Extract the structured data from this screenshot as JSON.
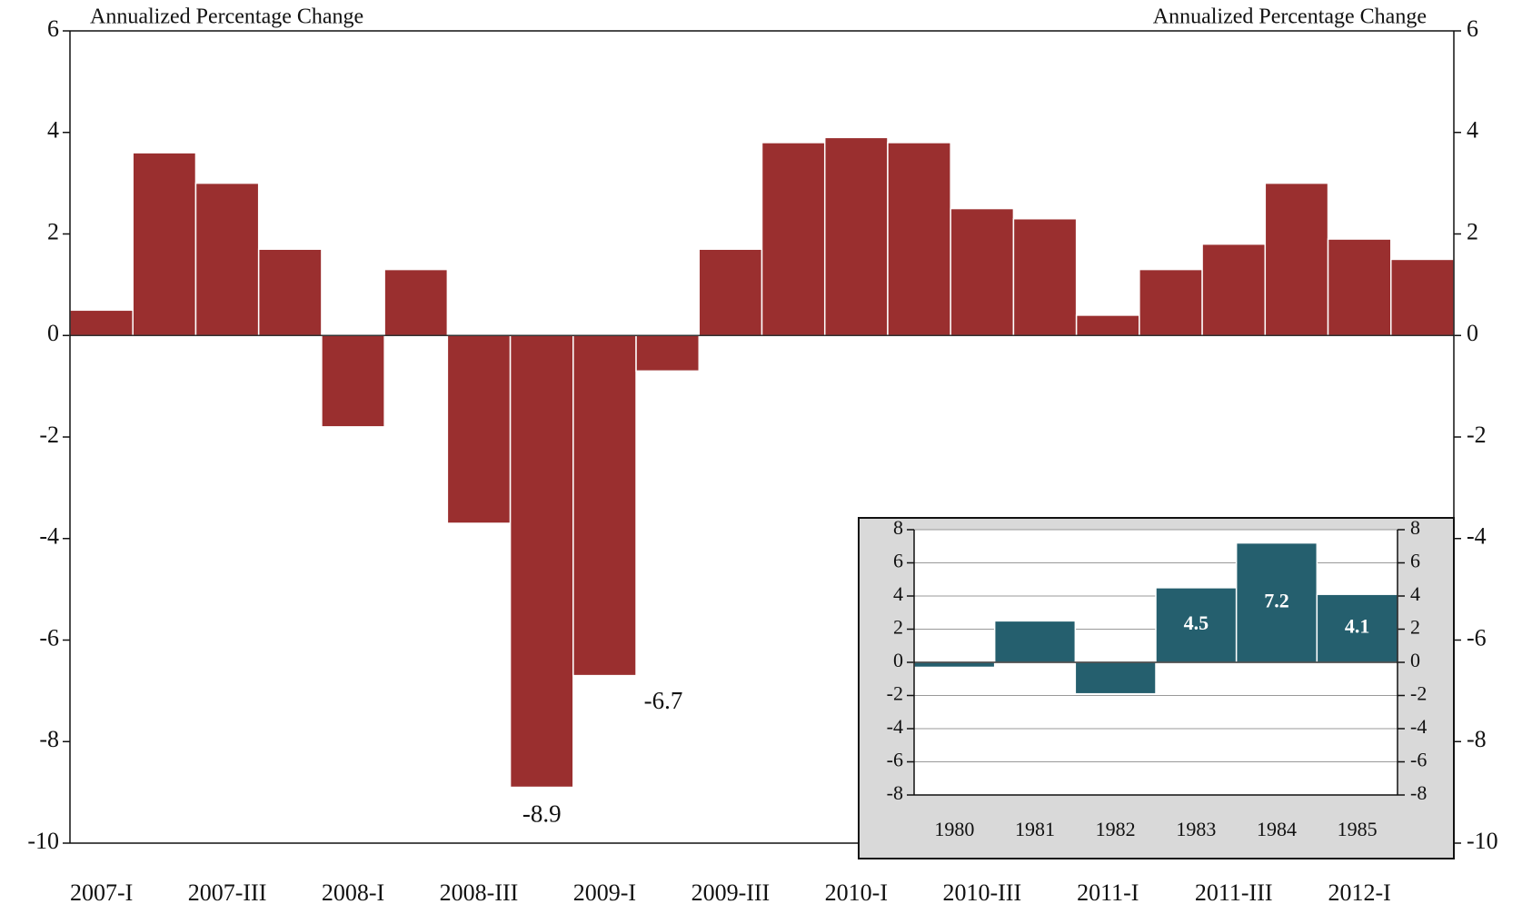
{
  "chart_data": [
    {
      "type": "bar",
      "ylabel": "Annualized Percentage Change",
      "y2label": "Annualized Percentage Change",
      "categories": [
        "2007-I",
        null,
        "2007-III",
        null,
        "2008-I",
        null,
        "2008-III",
        null,
        "2009-I",
        null,
        "2009-III",
        null,
        "2010-I",
        null,
        "2010-III",
        null,
        "2011-I",
        null,
        "2011-III",
        null,
        "2012-I",
        null
      ],
      "values": [
        0.5,
        3.6,
        3.0,
        1.7,
        -1.8,
        1.3,
        -3.7,
        -8.9,
        -6.7,
        -0.7,
        1.7,
        3.8,
        3.9,
        3.8,
        2.5,
        2.3,
        0.4,
        1.3,
        1.8,
        3.0,
        1.9,
        1.5
      ],
      "value_labels": [
        null,
        null,
        null,
        null,
        null,
        null,
        null,
        "-8.9",
        "-6.7",
        null,
        null,
        null,
        null,
        null,
        null,
        null,
        null,
        null,
        null,
        null,
        null,
        null
      ],
      "color": "#9a2f2f",
      "ylim": [
        -10,
        6
      ],
      "yticks": [
        -10,
        -8,
        -6,
        -4,
        -2,
        0,
        2,
        4,
        6
      ],
      "y2lim": [
        -10,
        6
      ],
      "y2ticks": [
        -10,
        -8,
        -6,
        -4,
        -2,
        0,
        2,
        4,
        6
      ]
    },
    {
      "type": "bar",
      "categories": [
        "1980",
        "1981",
        "1982",
        "1983",
        "1984",
        "1985"
      ],
      "values": [
        -0.3,
        2.5,
        -1.9,
        4.5,
        7.2,
        4.1
      ],
      "value_labels": [
        null,
        null,
        null,
        "4.5",
        "7.2",
        "4.1"
      ],
      "color": "#255f6e",
      "ylim": [
        -8,
        8
      ],
      "yticks": [
        -8,
        -6,
        -4,
        -2,
        0,
        2,
        4,
        6,
        8
      ],
      "y2lim": [
        -8,
        8
      ],
      "y2ticks": [
        -8,
        -6,
        -4,
        -2,
        0,
        2,
        4,
        6,
        8
      ],
      "grid": true
    }
  ]
}
